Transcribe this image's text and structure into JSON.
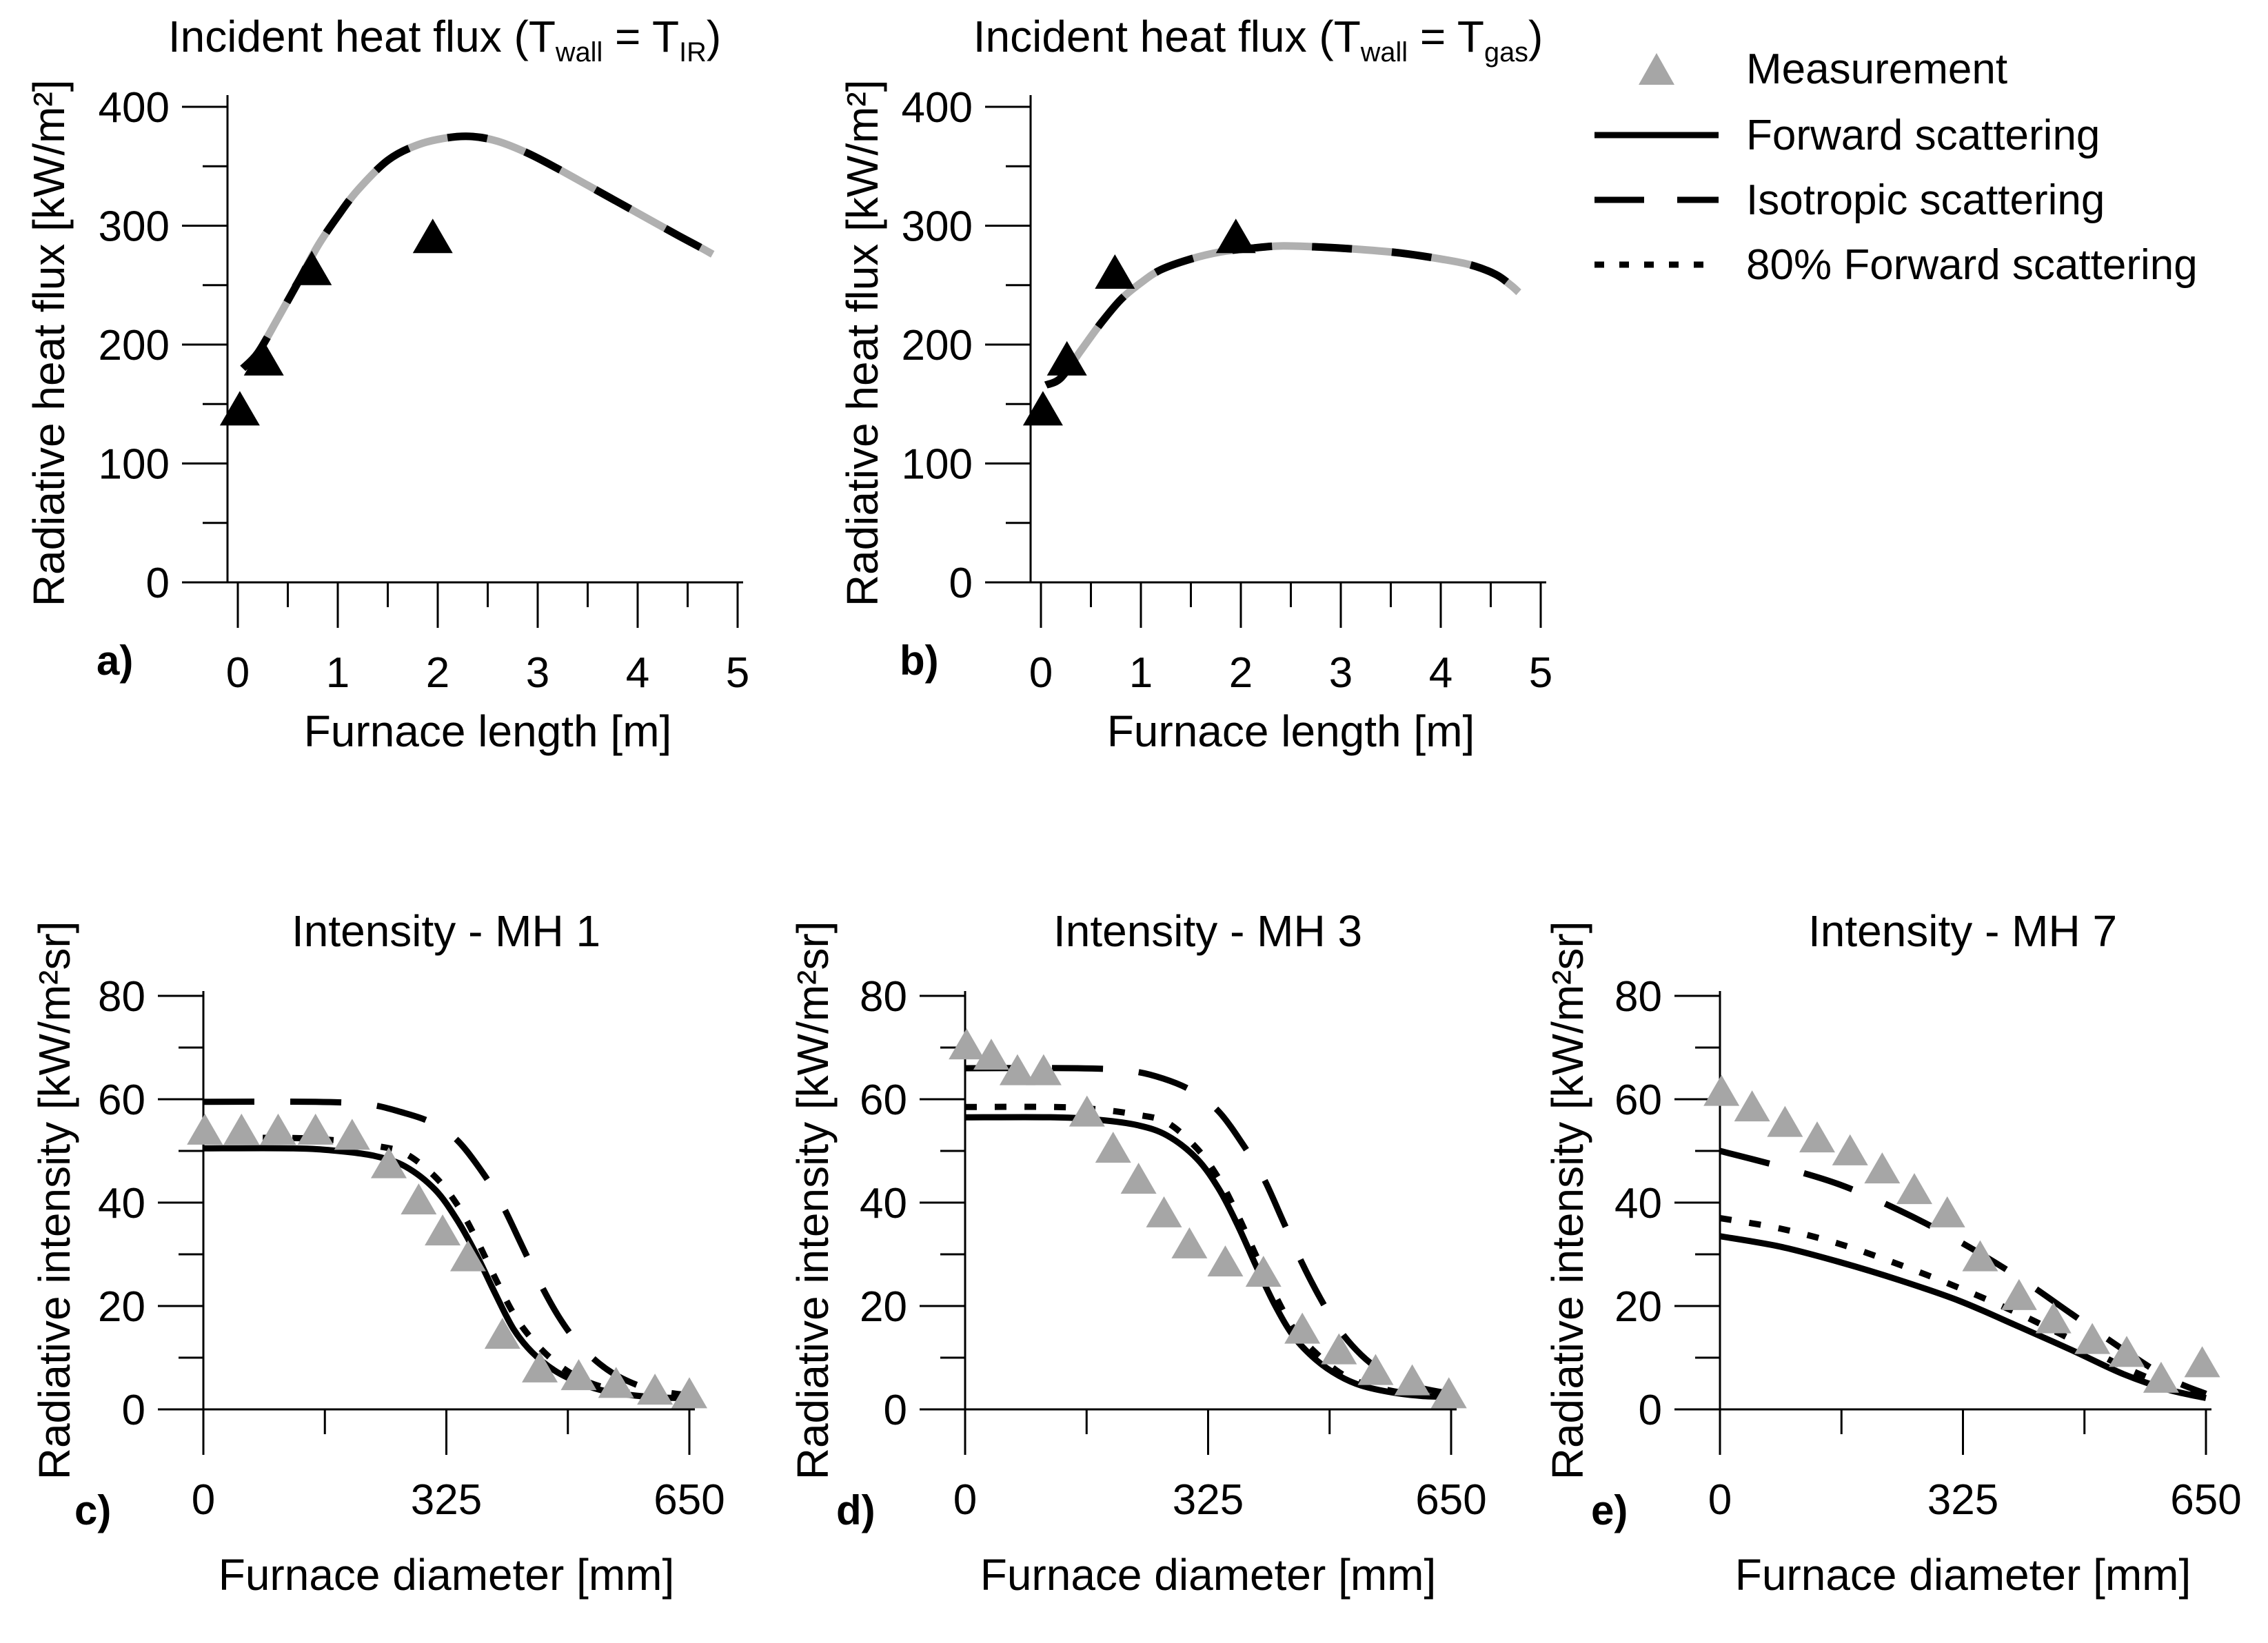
{
  "figure": {
    "background": "#ffffff",
    "accent_black": "#000000",
    "overlap_gray": "#b0b0b0",
    "measurement_gray": "#a6a6a6",
    "legend": {
      "items": [
        {
          "type": "triangle",
          "label": "Measurement",
          "color": "#a6a6a6"
        },
        {
          "type": "line",
          "style": "solid",
          "label": "Forward scattering",
          "color": "#000000"
        },
        {
          "type": "line",
          "style": "longdash",
          "label": "Isotropic scattering",
          "color": "#000000"
        },
        {
          "type": "line",
          "style": "shortdash",
          "label": "80% Forward scattering",
          "color": "#000000"
        }
      ]
    }
  },
  "chart_data": [
    {
      "id": "a",
      "panel_label": "a)",
      "type": "line",
      "title": {
        "prefix": "Incident heat flux (T",
        "sub1": "wall",
        "mid": " = T",
        "sub2": "IR",
        "suffix": ")"
      },
      "xlabel": "Furnace length [m]",
      "ylabel": "Radiative heat flux [kW/m²]",
      "xlim": [
        0,
        5
      ],
      "ylim": [
        0,
        400
      ],
      "xticks": {
        "major": [
          0,
          1,
          2,
          3,
          4,
          5
        ],
        "minor": [
          0.5,
          1.5,
          2.5,
          3.5,
          4.5
        ]
      },
      "yticks": {
        "major": [
          0,
          100,
          200,
          300,
          400
        ],
        "minor": [
          50,
          150,
          250,
          350
        ]
      },
      "grid": false,
      "series": [
        {
          "name": "Forward / Isotropic / 80% Forward scattering (all overlapping)",
          "style": "overlap",
          "x": [
            0.05,
            0.2,
            0.4,
            0.6,
            0.8,
            1.0,
            1.2,
            1.5,
            1.8,
            2.1,
            2.35,
            2.6,
            2.9,
            3.2,
            3.5,
            3.8,
            4.1,
            4.4,
            4.6,
            4.75
          ],
          "y": [
            180,
            193,
            222,
            252,
            283,
            308,
            330,
            355,
            368,
            374,
            375,
            371,
            361,
            348,
            334,
            320,
            306,
            292,
            283,
            276
          ]
        }
      ],
      "measurements": {
        "name": "Measurement",
        "color": "#000000",
        "points": [
          [
            0.02,
            143
          ],
          [
            0.26,
            185
          ],
          [
            0.74,
            261
          ],
          [
            1.95,
            288
          ]
        ]
      }
    },
    {
      "id": "b",
      "panel_label": "b)",
      "type": "line",
      "title": {
        "prefix": "Incident heat flux (T",
        "sub1": "wall",
        "mid": " = T",
        "sub2": "gas",
        "suffix": ")"
      },
      "xlabel": "Furnace length [m]",
      "ylabel": "Radiative heat flux [kW/m²]",
      "xlim": [
        0,
        5
      ],
      "ylim": [
        0,
        400
      ],
      "xticks": {
        "major": [
          0,
          1,
          2,
          3,
          4,
          5
        ],
        "minor": [
          0.5,
          1.5,
          2.5,
          3.5,
          4.5
        ]
      },
      "yticks": {
        "major": [
          0,
          100,
          200,
          300,
          400
        ],
        "minor": [
          50,
          150,
          250,
          350
        ]
      },
      "grid": false,
      "series": [
        {
          "name": "Forward / Isotropic / 80% Forward scattering (all overlapping)",
          "style": "overlap",
          "x": [
            0.05,
            0.2,
            0.4,
            0.6,
            0.8,
            1.0,
            1.2,
            1.5,
            1.8,
            2.1,
            2.4,
            2.8,
            3.2,
            3.6,
            4.0,
            4.3,
            4.55,
            4.7,
            4.78
          ],
          "y": [
            166,
            172,
            195,
            218,
            238,
            252,
            263,
            272,
            278,
            281,
            283,
            282,
            280,
            277,
            272,
            267,
            259,
            250,
            244
          ]
        }
      ],
      "measurements": {
        "name": "Measurement",
        "color": "#000000",
        "points": [
          [
            0.02,
            143
          ],
          [
            0.26,
            185
          ],
          [
            0.74,
            258
          ],
          [
            1.95,
            288
          ]
        ]
      }
    },
    {
      "id": "c",
      "panel_label": "c)",
      "type": "line",
      "title": {
        "text": "Intensity - MH 1"
      },
      "xlabel": "Furnace diameter [mm]",
      "ylabel": "Radiative intensity [kW/m²sr]",
      "xlim": [
        0,
        650
      ],
      "ylim": [
        0,
        80
      ],
      "xticks": {
        "major": [
          0,
          325,
          650
        ],
        "minor": [
          162.5,
          487.5
        ]
      },
      "yticks": {
        "major": [
          0,
          20,
          40,
          60,
          80
        ],
        "minor": [
          10,
          30,
          50,
          70
        ]
      },
      "grid": false,
      "series": [
        {
          "name": "Forward scattering",
          "style": "solid",
          "x": [
            0,
            120,
            180,
            230,
            270,
            310,
            340,
            365,
            390,
            415,
            440,
            470,
            500,
            530,
            570,
            610,
            650
          ],
          "y": [
            50.5,
            50.5,
            50,
            49,
            47,
            42.5,
            36.5,
            30,
            22.5,
            15.5,
            11,
            7.5,
            5.3,
            3.8,
            2.8,
            2.3,
            2.2
          ]
        },
        {
          "name": "80% Forward scattering",
          "style": "shortdash",
          "x": [
            0,
            120,
            180,
            230,
            270,
            310,
            340,
            365,
            390,
            415,
            440,
            470,
            500,
            530,
            570,
            610,
            650
          ],
          "y": [
            52.5,
            52.5,
            52,
            51,
            49.5,
            45,
            39.5,
            33,
            25.5,
            18.5,
            13.5,
            9.2,
            6.3,
            4.5,
            3.2,
            2.6,
            2.4
          ]
        },
        {
          "name": "Isotropic scattering",
          "style": "longdash",
          "x": [
            0,
            150,
            220,
            265,
            305,
            340,
            375,
            400,
            425,
            450,
            475,
            500,
            530,
            560,
            600,
            650
          ],
          "y": [
            59.5,
            59.5,
            59,
            57.5,
            55.5,
            52,
            45.5,
            39.5,
            32,
            24.5,
            18,
            13,
            8.8,
            6,
            3.8,
            2.7
          ]
        }
      ],
      "measurements": {
        "name": "Measurement",
        "color": "#a6a6a6",
        "points": [
          [
            2,
            53.5
          ],
          [
            51,
            53.5
          ],
          [
            100,
            53.5
          ],
          [
            150,
            53.5
          ],
          [
            199,
            52.5
          ],
          [
            248,
            47
          ],
          [
            288,
            40
          ],
          [
            320,
            34
          ],
          [
            354,
            29
          ],
          [
            400,
            14
          ],
          [
            450,
            7.5
          ],
          [
            502,
            6
          ],
          [
            552,
            4.5
          ],
          [
            604,
            3.2
          ],
          [
            650,
            2.5
          ]
        ]
      }
    },
    {
      "id": "d",
      "panel_label": "d)",
      "type": "line",
      "title": {
        "text": "Intensity - MH 3"
      },
      "xlabel": "Furnace diameter [mm]",
      "ylabel": "Radiative intensity [kW/m²sr]",
      "xlim": [
        0,
        650
      ],
      "ylim": [
        0,
        80
      ],
      "xticks": {
        "major": [
          0,
          325,
          650
        ],
        "minor": [
          162.5,
          487.5
        ]
      },
      "yticks": {
        "major": [
          0,
          20,
          40,
          60,
          80
        ],
        "minor": [
          10,
          30,
          50,
          70
        ]
      },
      "grid": false,
      "series": [
        {
          "name": "Forward scattering",
          "style": "solid",
          "x": [
            0,
            120,
            180,
            230,
            270,
            310,
            340,
            365,
            390,
            415,
            440,
            470,
            500,
            530,
            570,
            610,
            650
          ],
          "y": [
            56.5,
            56.5,
            56,
            55,
            53,
            48.5,
            42.5,
            35.5,
            27.5,
            20,
            14,
            9.5,
            6.5,
            4.6,
            3.3,
            2.6,
            2.4
          ]
        },
        {
          "name": "80% Forward scattering",
          "style": "shortdash",
          "x": [
            0,
            120,
            180,
            230,
            270,
            310,
            340,
            365,
            390,
            415,
            440,
            470,
            500,
            530,
            570,
            610,
            650
          ],
          "y": [
            58.5,
            58.5,
            58,
            57,
            55.5,
            50.5,
            44.5,
            37.5,
            29.5,
            22,
            15.5,
            10.8,
            7.2,
            5.1,
            3.6,
            2.8,
            2.5
          ]
        },
        {
          "name": "Isotropic scattering",
          "style": "longdash",
          "x": [
            0,
            150,
            220,
            265,
            305,
            340,
            375,
            400,
            425,
            450,
            475,
            500,
            530,
            560,
            600,
            650
          ],
          "y": [
            66,
            66,
            65.5,
            64,
            61.5,
            57.5,
            50.5,
            44.5,
            36.5,
            28.5,
            21.5,
            15.5,
            10.5,
            7.2,
            4.5,
            3
          ]
        }
      ],
      "measurements": {
        "name": "Measurement",
        "color": "#a6a6a6",
        "points": [
          [
            2,
            70
          ],
          [
            35,
            68
          ],
          [
            70,
            65
          ],
          [
            105,
            65
          ],
          [
            163,
            57
          ],
          [
            198,
            50
          ],
          [
            232,
            44
          ],
          [
            266,
            37.5
          ],
          [
            300,
            31.5
          ],
          [
            348,
            28
          ],
          [
            399,
            26
          ],
          [
            451,
            15
          ],
          [
            500,
            11
          ],
          [
            549,
            7
          ],
          [
            598,
            5
          ],
          [
            647,
            2.5
          ]
        ]
      }
    },
    {
      "id": "e",
      "panel_label": "e)",
      "type": "line",
      "title": {
        "text": "Intensity - MH 7"
      },
      "xlabel": "Furnace diameter [mm]",
      "ylabel": "Radiative intensity [kW/m²sr]",
      "xlim": [
        0,
        650
      ],
      "ylim": [
        0,
        80
      ],
      "xticks": {
        "major": [
          0,
          325,
          650
        ],
        "minor": [
          162.5,
          487.5
        ]
      },
      "yticks": {
        "major": [
          0,
          20,
          40,
          60,
          80
        ],
        "minor": [
          10,
          30,
          50,
          70
        ]
      },
      "grid": false,
      "series": [
        {
          "name": "Forward scattering",
          "style": "solid",
          "x": [
            0,
            80,
            160,
            240,
            320,
            400,
            470,
            540,
            600,
            650
          ],
          "y": [
            33.5,
            31.5,
            28.5,
            25,
            21,
            16,
            11.5,
            6.8,
            3.8,
            2.2
          ]
        },
        {
          "name": "80% Forward scattering",
          "style": "shortdash",
          "x": [
            0,
            80,
            160,
            240,
            320,
            400,
            470,
            540,
            600,
            650
          ],
          "y": [
            37,
            35,
            32,
            28,
            23.5,
            18.5,
            13.5,
            8.2,
            4.6,
            2.6
          ]
        },
        {
          "name": "Isotropic scattering",
          "style": "longdash",
          "x": [
            0,
            80,
            160,
            240,
            320,
            400,
            470,
            540,
            600,
            650
          ],
          "y": [
            50,
            47,
            43.5,
            38.5,
            32.5,
            25.5,
            18.5,
            11.5,
            6,
            3
          ]
        }
      ],
      "measurements": {
        "name": "Measurement",
        "color": "#a6a6a6",
        "points": [
          [
            2,
            61
          ],
          [
            43,
            58
          ],
          [
            87,
            55
          ],
          [
            130,
            52
          ],
          [
            174,
            49.5
          ],
          [
            217,
            46
          ],
          [
            260,
            42
          ],
          [
            304,
            37.5
          ],
          [
            348,
            29
          ],
          [
            400,
            21.5
          ],
          [
            446,
            17
          ],
          [
            498,
            13
          ],
          [
            544,
            10.5
          ],
          [
            590,
            5.5
          ],
          [
            645,
            8.5
          ]
        ]
      }
    }
  ]
}
